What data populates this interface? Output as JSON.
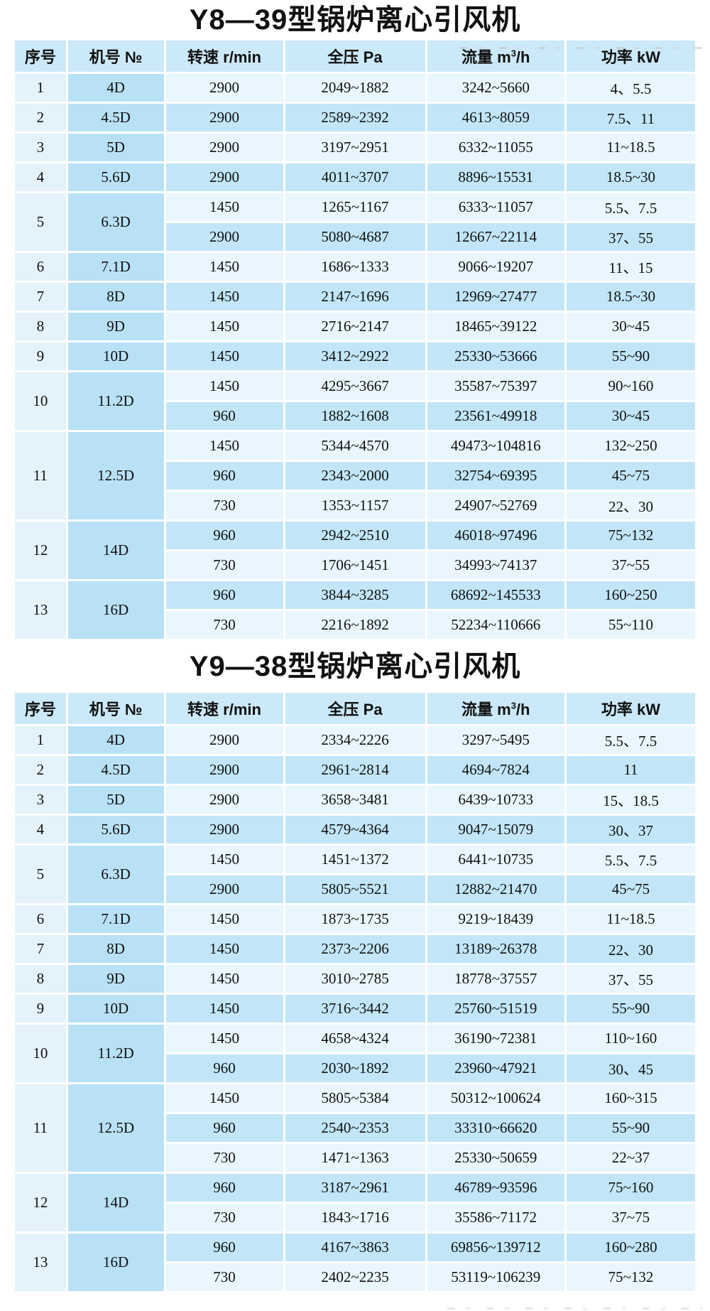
{
  "colors": {
    "header_bg": "#cbe9f8",
    "row_light": "#e9f6fd",
    "row_dark": "#c2e6f8",
    "col_seq_bg": "#e4f2fb",
    "col_model_bg": "#b9e1f6",
    "text": "#111111",
    "page_bg": "#ffffff"
  },
  "headers": {
    "seq": "序号",
    "model": "机号 №",
    "speed": "转速 r/min",
    "pressure": "全压 Pa",
    "flow_pre": "流量 m",
    "flow_sup": "3",
    "flow_post": "/h",
    "power": "功率 kW"
  },
  "tables": [
    {
      "title": "Y8—39型锅炉离心引风机",
      "groups": [
        {
          "seq": "1",
          "model": "4D",
          "rows": [
            [
              "2900",
              "2049~1882",
              "3242~5660",
              "4、5.5"
            ]
          ]
        },
        {
          "seq": "2",
          "model": "4.5D",
          "rows": [
            [
              "2900",
              "2589~2392",
              "4613~8059",
              "7.5、11"
            ]
          ]
        },
        {
          "seq": "3",
          "model": "5D",
          "rows": [
            [
              "2900",
              "3197~2951",
              "6332~11055",
              "11~18.5"
            ]
          ]
        },
        {
          "seq": "4",
          "model": "5.6D",
          "rows": [
            [
              "2900",
              "4011~3707",
              "8896~15531",
              "18.5~30"
            ]
          ]
        },
        {
          "seq": "5",
          "model": "6.3D",
          "rows": [
            [
              "1450",
              "1265~1167",
              "6333~11057",
              "5.5、7.5"
            ],
            [
              "2900",
              "5080~4687",
              "12667~22114",
              "37、55"
            ]
          ]
        },
        {
          "seq": "6",
          "model": "7.1D",
          "rows": [
            [
              "1450",
              "1686~1333",
              "9066~19207",
              "11、15"
            ]
          ]
        },
        {
          "seq": "7",
          "model": "8D",
          "rows": [
            [
              "1450",
              "2147~1696",
              "12969~27477",
              "18.5~30"
            ]
          ]
        },
        {
          "seq": "8",
          "model": "9D",
          "rows": [
            [
              "1450",
              "2716~2147",
              "18465~39122",
              "30~45"
            ]
          ]
        },
        {
          "seq": "9",
          "model": "10D",
          "rows": [
            [
              "1450",
              "3412~2922",
              "25330~53666",
              "55~90"
            ]
          ]
        },
        {
          "seq": "10",
          "model": "11.2D",
          "rows": [
            [
              "1450",
              "4295~3667",
              "35587~75397",
              "90~160"
            ],
            [
              "960",
              "1882~1608",
              "23561~49918",
              "30~45"
            ]
          ]
        },
        {
          "seq": "11",
          "model": "12.5D",
          "rows": [
            [
              "1450",
              "5344~4570",
              "49473~104816",
              "132~250"
            ],
            [
              "960",
              "2343~2000",
              "32754~69395",
              "45~75"
            ],
            [
              "730",
              "1353~1157",
              "24907~52769",
              "22、30"
            ]
          ]
        },
        {
          "seq": "12",
          "model": "14D",
          "rows": [
            [
              "960",
              "2942~2510",
              "46018~97496",
              "75~132"
            ],
            [
              "730",
              "1706~1451",
              "34993~74137",
              "37~55"
            ]
          ]
        },
        {
          "seq": "13",
          "model": "16D",
          "rows": [
            [
              "960",
              "3844~3285",
              "68692~145533",
              "160~250"
            ],
            [
              "730",
              "2216~1892",
              "52234~110666",
              "55~110"
            ]
          ]
        }
      ]
    },
    {
      "title": "Y9—38型锅炉离心引风机",
      "groups": [
        {
          "seq": "1",
          "model": "4D",
          "rows": [
            [
              "2900",
              "2334~2226",
              "3297~5495",
              "5.5、7.5"
            ]
          ]
        },
        {
          "seq": "2",
          "model": "4.5D",
          "rows": [
            [
              "2900",
              "2961~2814",
              "4694~7824",
              "11"
            ]
          ]
        },
        {
          "seq": "3",
          "model": "5D",
          "rows": [
            [
              "2900",
              "3658~3481",
              "6439~10733",
              "15、18.5"
            ]
          ]
        },
        {
          "seq": "4",
          "model": "5.6D",
          "rows": [
            [
              "2900",
              "4579~4364",
              "9047~15079",
              "30、37"
            ]
          ]
        },
        {
          "seq": "5",
          "model": "6.3D",
          "rows": [
            [
              "1450",
              "1451~1372",
              "6441~10735",
              "5.5、7.5"
            ],
            [
              "2900",
              "5805~5521",
              "12882~21470",
              "45~75"
            ]
          ]
        },
        {
          "seq": "6",
          "model": "7.1D",
          "rows": [
            [
              "1450",
              "1873~1735",
              "9219~18439",
              "11~18.5"
            ]
          ]
        },
        {
          "seq": "7",
          "model": "8D",
          "rows": [
            [
              "1450",
              "2373~2206",
              "13189~26378",
              "22、30"
            ]
          ]
        },
        {
          "seq": "8",
          "model": "9D",
          "rows": [
            [
              "1450",
              "3010~2785",
              "18778~37557",
              "37、55"
            ]
          ]
        },
        {
          "seq": "9",
          "model": "10D",
          "rows": [
            [
              "1450",
              "3716~3442",
              "25760~51519",
              "55~90"
            ]
          ]
        },
        {
          "seq": "10",
          "model": "11.2D",
          "rows": [
            [
              "1450",
              "4658~4324",
              "36190~72381",
              "110~160"
            ],
            [
              "960",
              "2030~1892",
              "23960~47921",
              "30、45"
            ]
          ]
        },
        {
          "seq": "11",
          "model": "12.5D",
          "rows": [
            [
              "1450",
              "5805~5384",
              "50312~100624",
              "160~315"
            ],
            [
              "960",
              "2540~2353",
              "33310~66620",
              "55~90"
            ],
            [
              "730",
              "1471~1363",
              "25330~50659",
              "22~37"
            ]
          ]
        },
        {
          "seq": "12",
          "model": "14D",
          "rows": [
            [
              "960",
              "3187~2961",
              "46789~93596",
              "75~160"
            ],
            [
              "730",
              "1843~1716",
              "35586~71172",
              "37~75"
            ]
          ]
        },
        {
          "seq": "13",
          "model": "16D",
          "rows": [
            [
              "960",
              "4167~3863",
              "69856~139712",
              "160~280"
            ],
            [
              "730",
              "2402~2235",
              "53119~106239",
              "75~132"
            ]
          ]
        }
      ]
    }
  ]
}
